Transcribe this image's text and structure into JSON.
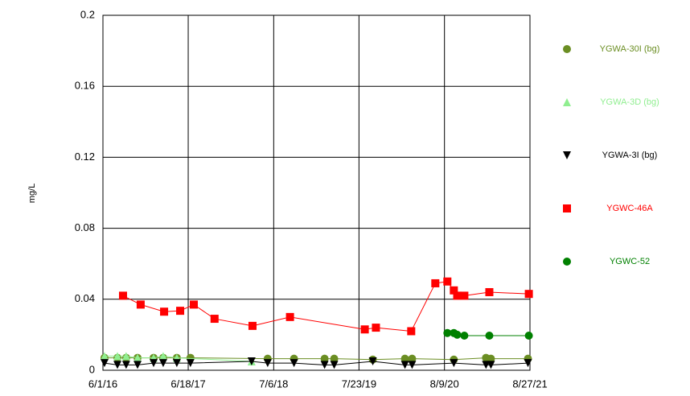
{
  "chart_data": {
    "type": "line",
    "ylabel": "mg/L",
    "ylim": [
      0,
      0.2
    ],
    "yticks": [
      0,
      0.04,
      0.08,
      0.12,
      0.16,
      0.2
    ],
    "xlim": [
      "2016-06-01",
      "2021-08-27"
    ],
    "xticks": [
      {
        "value": "2016-06-01",
        "label": "6/1/16"
      },
      {
        "value": "2017-06-18",
        "label": "6/18/17"
      },
      {
        "value": "2018-07-06",
        "label": "7/6/18"
      },
      {
        "value": "2019-07-23",
        "label": "7/23/19"
      },
      {
        "value": "2020-08-09",
        "label": "8/9/20"
      },
      {
        "value": "2021-08-27",
        "label": "8/27/21"
      }
    ],
    "grid": true,
    "legend": "right",
    "series": [
      {
        "name": "YGWA-30I (bg)",
        "color": "#6b8e23",
        "marker": "circle",
        "x": [
          "2016-06-08",
          "2016-08-05",
          "2016-09-13",
          "2016-11-03",
          "2017-01-14",
          "2017-02-26",
          "2017-04-28",
          "2017-06-28",
          "2018-06-09",
          "2018-10-05",
          "2019-02-19",
          "2019-04-03",
          "2019-09-23",
          "2020-02-14",
          "2020-03-17",
          "2020-09-20",
          "2021-02-11",
          "2021-03-05",
          "2021-08-18"
        ],
        "values": [
          0.007,
          0.007,
          0.007,
          0.007,
          0.007,
          0.007,
          0.007,
          0.007,
          0.0065,
          0.0065,
          0.0065,
          0.0065,
          0.006,
          0.0065,
          0.0065,
          0.006,
          0.007,
          0.0065,
          0.0065
        ]
      },
      {
        "name": "YGWA-3D (bg)",
        "color": "#90ee90",
        "marker": "triangle",
        "x": [
          "2016-06-08",
          "2016-08-05",
          "2016-09-13",
          "2016-11-03",
          "2017-01-14",
          "2017-02-26",
          "2017-04-28",
          "2018-03-29"
        ],
        "values": [
          0.008,
          0.008,
          0.008,
          0.007,
          0.007,
          0.008,
          0.007,
          0.005
        ]
      },
      {
        "name": "YGWA-3I (bg)",
        "color": "#000000",
        "marker": "triangle-down",
        "x": [
          "2016-06-08",
          "2016-08-05",
          "2016-09-13",
          "2016-11-03",
          "2017-01-14",
          "2017-02-26",
          "2017-04-28",
          "2017-06-28",
          "2018-03-29",
          "2018-06-09",
          "2018-10-05",
          "2019-02-19",
          "2019-04-03",
          "2019-09-23",
          "2020-02-14",
          "2020-03-17",
          "2020-09-20",
          "2021-02-11",
          "2021-03-05",
          "2021-08-18"
        ],
        "values": [
          0.004,
          0.003,
          0.003,
          0.003,
          0.004,
          0.004,
          0.004,
          0.004,
          0.005,
          0.004,
          0.004,
          0.003,
          0.003,
          0.005,
          0.003,
          0.003,
          0.004,
          0.003,
          0.003,
          0.004
        ]
      },
      {
        "name": "YGWC-46A",
        "color": "#ff0000",
        "marker": "square",
        "x": [
          "2016-08-30",
          "2016-11-17",
          "2017-03-02",
          "2017-05-13",
          "2017-07-13",
          "2017-10-14",
          "2018-04-02",
          "2018-09-17",
          "2019-08-18",
          "2019-10-07",
          "2020-03-13",
          "2020-06-29",
          "2020-08-22",
          "2020-09-20",
          "2020-10-05",
          "2020-11-06",
          "2021-02-26",
          "2021-08-22"
        ],
        "values": [
          0.042,
          0.037,
          0.033,
          0.0335,
          0.037,
          0.029,
          0.025,
          0.03,
          0.023,
          0.024,
          0.022,
          0.049,
          0.05,
          0.045,
          0.042,
          0.042,
          0.044,
          0.043
        ]
      },
      {
        "name": "YGWC-52",
        "color": "#008000",
        "marker": "circle",
        "x": [
          "2020-08-22",
          "2020-09-20",
          "2020-10-05",
          "2020-11-06",
          "2021-02-26",
          "2021-08-22"
        ],
        "values": [
          0.021,
          0.021,
          0.02,
          0.0195,
          0.0195,
          0.0195
        ]
      }
    ]
  }
}
